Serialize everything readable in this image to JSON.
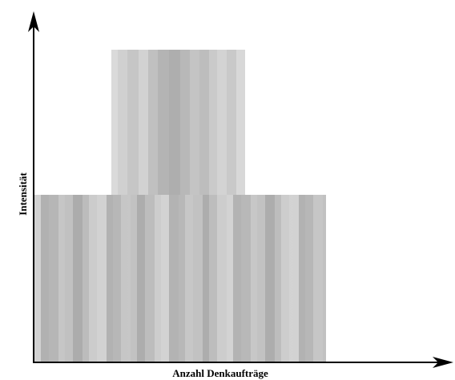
{
  "diagram": {
    "x_axis_label": "Anzahl Denkaufträge",
    "y_axis_label": "Intensität",
    "colors": {
      "axis": "#000000",
      "stripes_light": [
        "#d4d4d4",
        "#cbcbcb",
        "#c2c2c2",
        "#b8b8b8",
        "#adadad"
      ]
    },
    "blocks": [
      {
        "name": "lower-block",
        "fill": "vertical-stripes"
      },
      {
        "name": "upper-block",
        "fill": "vertical-stripes"
      }
    ]
  }
}
